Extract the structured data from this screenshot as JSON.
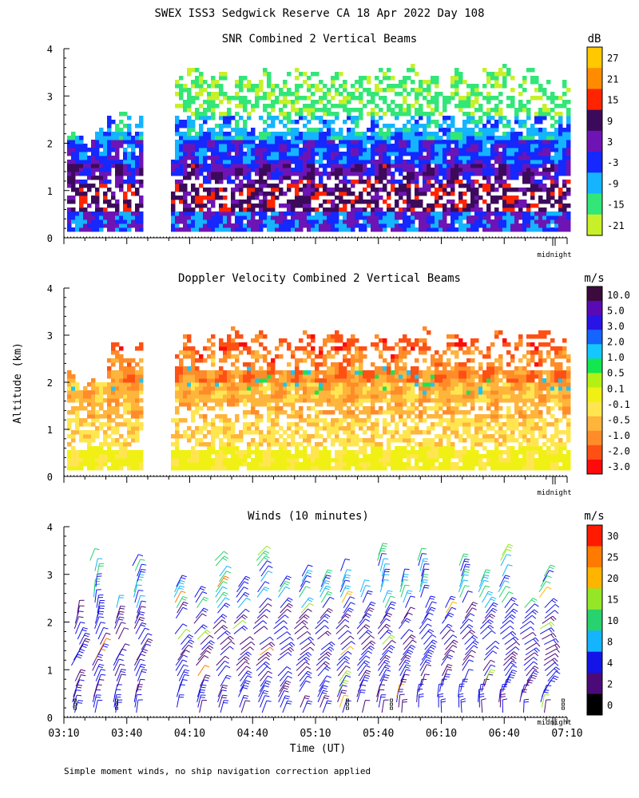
{
  "figure": {
    "title": "SWEX ISS3 Sedgwick Reserve CA  18 Apr 2022 Day 108",
    "ylabel": "Altitude (km)",
    "xlabel": "Time (UT)",
    "footnote": "Simple moment winds, no ship navigation correction applied",
    "midnight_label": "midnight"
  },
  "chart_data": [
    {
      "type": "heatmap",
      "title": "SNR Combined 2 Vertical Beams",
      "unit": "dB",
      "ylim": [
        0,
        4
      ],
      "yticks": [
        "0",
        "1",
        "2",
        "3",
        "4"
      ],
      "x_range_ut": [
        "03:10",
        "07:10"
      ],
      "colorbar_labels": [
        "27",
        "21",
        "15",
        "9",
        "3",
        "-3",
        "-9",
        "-15",
        "-21"
      ],
      "colors": [
        "#ffc800",
        "#ff8c00",
        "#ff2400",
        "#3c0a5a",
        "#6e14b4",
        "#1428ff",
        "#14b4ff",
        "#32e678",
        "#c8f028"
      ]
    },
    {
      "type": "heatmap",
      "title": "Doppler Velocity Combined 2 Vertical Beams",
      "unit": "m/s",
      "ylim": [
        0,
        4
      ],
      "yticks": [
        "0",
        "1",
        "2",
        "3",
        "4"
      ],
      "x_range_ut": [
        "03:10",
        "07:10"
      ],
      "colorbar_labels": [
        "10.0",
        "5.0",
        "3.0",
        "2.0",
        "1.0",
        "0.5",
        "0.1",
        "-0.1",
        "-0.5",
        "-1.0",
        "-2.0",
        "-3.0"
      ],
      "colors": [
        "#3c0a3c",
        "#5a0ab4",
        "#2814e6",
        "#1464ff",
        "#14c8ff",
        "#14e650",
        "#b4f014",
        "#f0f014",
        "#ffe650",
        "#ffb43c",
        "#ff8c28",
        "#ff5014",
        "#ff0a0a"
      ]
    },
    {
      "type": "scatter",
      "title": "Winds (10 minutes)",
      "unit": "m/s",
      "ylim": [
        0,
        4
      ],
      "yticks": [
        "0",
        "1",
        "2",
        "3",
        "4"
      ],
      "xticks": [
        "03:10",
        "03:40",
        "04:10",
        "04:40",
        "05:10",
        "05:40",
        "06:10",
        "06:40",
        "07:10"
      ],
      "colorbar_labels": [
        "30",
        "25",
        "20",
        "15",
        "10",
        "8",
        "4",
        "2",
        "0"
      ],
      "colors": [
        "#ff1a00",
        "#ff7a00",
        "#ffb400",
        "#96e628",
        "#28d26e",
        "#14b4ff",
        "#1414e6",
        "#4b0a78",
        "#000000"
      ]
    }
  ]
}
